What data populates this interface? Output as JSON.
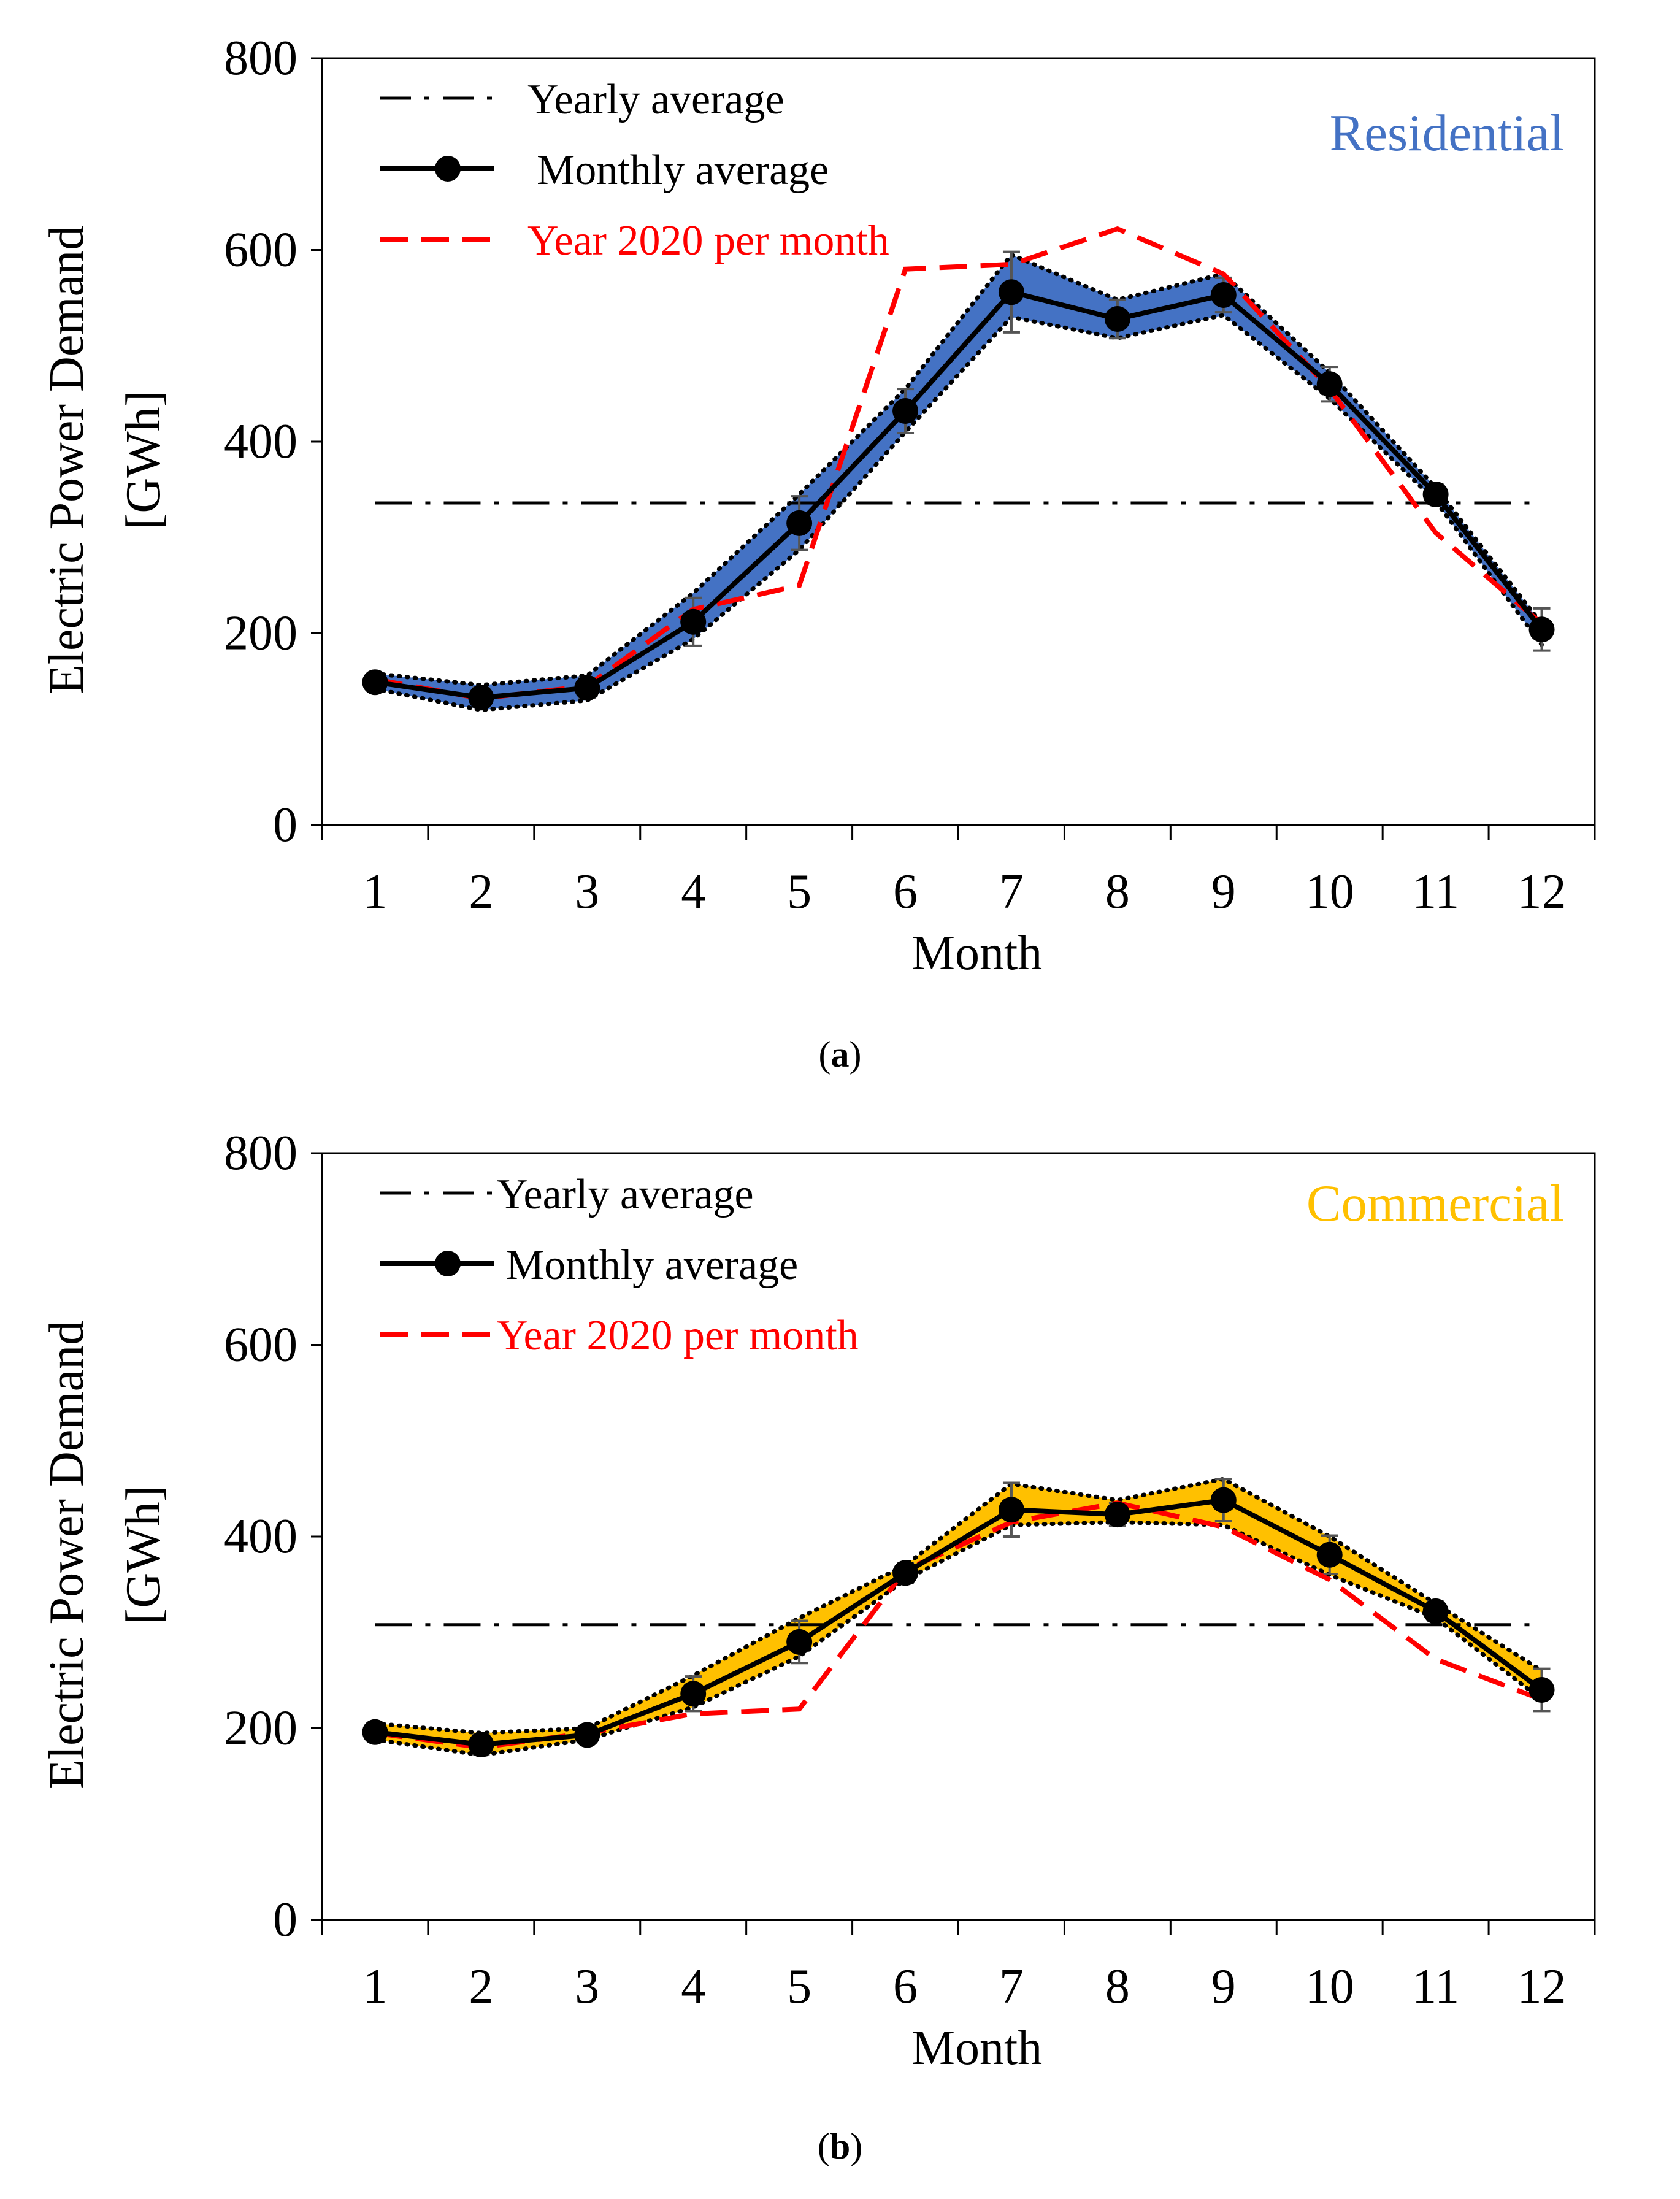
{
  "chart_data": [
    {
      "type": "line",
      "panel_label": "a",
      "sector_label": "Residential",
      "sector_color": "#4472C4",
      "ylabel_line1": "Electric Power Demand",
      "ylabel_line2": "[GWh]",
      "xlabel": "Month",
      "ylim": [
        0,
        800
      ],
      "yticks": [
        0,
        200,
        400,
        600,
        800
      ],
      "categories": [
        "1",
        "2",
        "3",
        "4",
        "5",
        "6",
        "7",
        "8",
        "9",
        "10",
        "11",
        "12"
      ],
      "legend": {
        "yearly": "Yearly average",
        "monthly": "Monthly average",
        "year2020": "Year 2020 per month"
      },
      "yearly_average": 336,
      "monthly_average": [
        149,
        133,
        143,
        212,
        315,
        432,
        556,
        528,
        553,
        460,
        345,
        204
      ],
      "band_upper": [
        158,
        146,
        156,
        242,
        345,
        455,
        595,
        548,
        575,
        472,
        352,
        210
      ],
      "band_lower": [
        142,
        120,
        130,
        194,
        287,
        410,
        530,
        508,
        532,
        445,
        338,
        188
      ],
      "error_bar": [
        8,
        10,
        10,
        25,
        28,
        23,
        42,
        20,
        18,
        18,
        10,
        22
      ],
      "year_2020": [
        152,
        132,
        145,
        225,
        250,
        580,
        585,
        622,
        575,
        455,
        305,
        210
      ]
    },
    {
      "type": "line",
      "panel_label": "b",
      "sector_label": "Commercial",
      "sector_color": "#FFC000",
      "ylabel_line1": "Electric Power Demand",
      "ylabel_line2": "[GWh]",
      "xlabel": "Month",
      "ylim": [
        0,
        800
      ],
      "yticks": [
        0,
        200,
        400,
        600,
        800
      ],
      "categories": [
        "1",
        "2",
        "3",
        "4",
        "5",
        "6",
        "7",
        "8",
        "9",
        "10",
        "11",
        "12"
      ],
      "legend": {
        "yearly": "Yearly average",
        "monthly": "Monthly average",
        "year2020": "Year 2020 per month"
      },
      "yearly_average": 308,
      "monthly_average": [
        196,
        183,
        193,
        236,
        290,
        362,
        428,
        423,
        438,
        381,
        322,
        240
      ],
      "band_upper": [
        205,
        195,
        200,
        255,
        315,
        370,
        455,
        438,
        460,
        400,
        330,
        260
      ],
      "band_lower": [
        188,
        172,
        188,
        222,
        275,
        355,
        412,
        415,
        412,
        360,
        315,
        230
      ],
      "error_bar": [
        8,
        10,
        8,
        18,
        22,
        10,
        28,
        12,
        22,
        20,
        10,
        22
      ],
      "year_2020": [
        195,
        180,
        195,
        215,
        220,
        365,
        415,
        435,
        410,
        355,
        272,
        230
      ]
    }
  ],
  "captions": [
    "a",
    "b"
  ]
}
